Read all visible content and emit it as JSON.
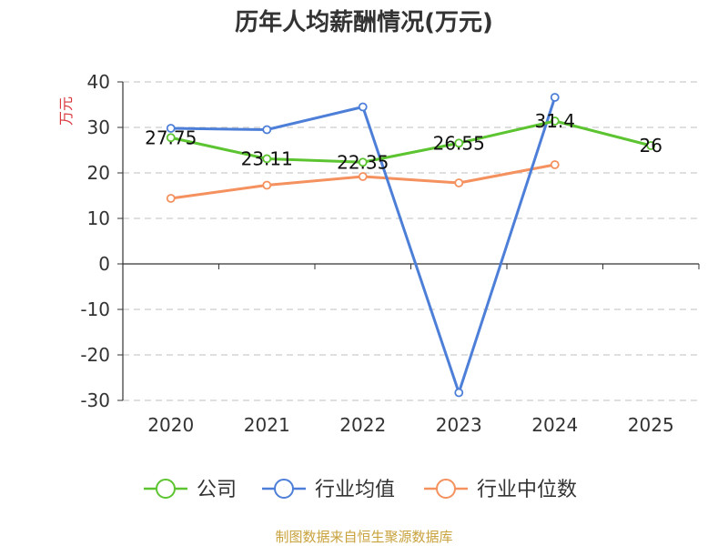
{
  "chart_data": {
    "type": "line",
    "title": "历年人均薪酬情况(万元)",
    "ylabel": "万元",
    "categories": [
      "2020",
      "2021",
      "2022",
      "2023",
      "2024",
      "2025"
    ],
    "ylim": [
      -30,
      40
    ],
    "yticks": [
      40,
      30,
      20,
      10,
      0,
      -10,
      -20,
      -30
    ],
    "grid": true,
    "legend_position": "bottom",
    "series": [
      {
        "name": "公司",
        "values": [
          27.75,
          23.11,
          22.35,
          26.55,
          31.4,
          26
        ],
        "labels": [
          "27.75",
          "23.11",
          "22.35",
          "26.55",
          "31.4",
          "26"
        ],
        "color": "#5cc430"
      },
      {
        "name": "行业均值",
        "values": [
          29.8,
          29.5,
          34.5,
          -28.3,
          36.6,
          null
        ],
        "color": "#4d7fd8"
      },
      {
        "name": "行业中位数",
        "values": [
          14.4,
          17.3,
          19.2,
          17.8,
          21.8,
          null
        ],
        "color": "#f4915e"
      }
    ]
  },
  "source": "制图数据来自恒生聚源数据库",
  "colors": {
    "axis": "#333333",
    "grid": "#cccccc",
    "ylabel": "#d9373c",
    "source": "#c8a23c"
  }
}
